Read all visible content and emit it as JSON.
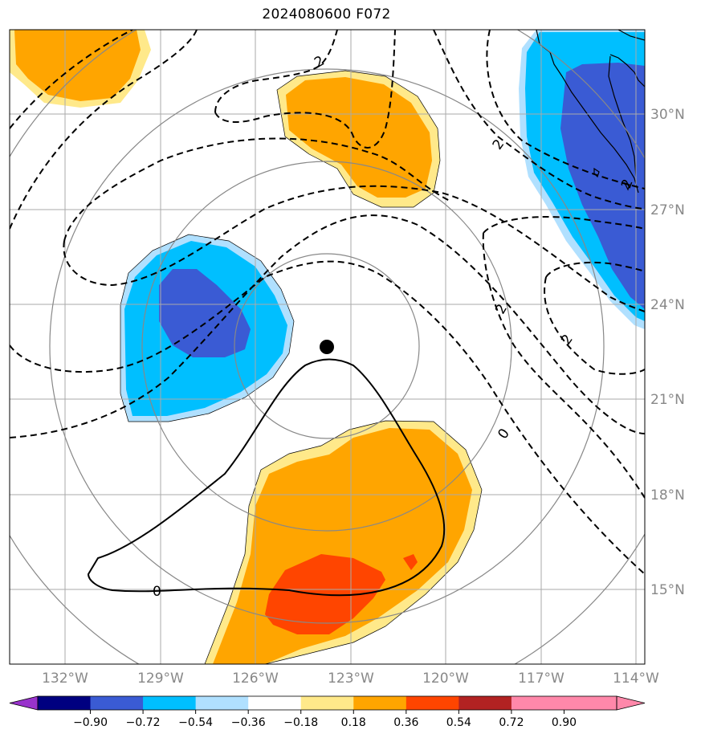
{
  "title": "2024080600 F072",
  "axes": {
    "lon_labels": [
      "132°W",
      "129°W",
      "126°W",
      "123°W",
      "120°W",
      "117°W",
      "114°W"
    ],
    "lat_labels": [
      "30°N",
      "27°N",
      "24°N",
      "21°N",
      "18°N",
      "15°N"
    ]
  },
  "contour_labels": [
    "2",
    "2",
    "2",
    "2",
    "0",
    "0",
    "2"
  ],
  "colorbar": {
    "ticks": [
      "−0.90",
      "−0.72",
      "−0.54",
      "−0.36",
      "−0.18",
      "0.18",
      "0.36",
      "0.54",
      "0.72",
      "0.90"
    ],
    "colors": [
      "#9933cc",
      "#000080",
      "#3a5bd4",
      "#00bfff",
      "#b0e0ff",
      "#ffffff",
      "#ffe98a",
      "#ffa500",
      "#ff4500",
      "#b22222",
      "#ff88aa",
      "#ff88aa"
    ]
  },
  "storm_center_marker": "black-dot"
}
